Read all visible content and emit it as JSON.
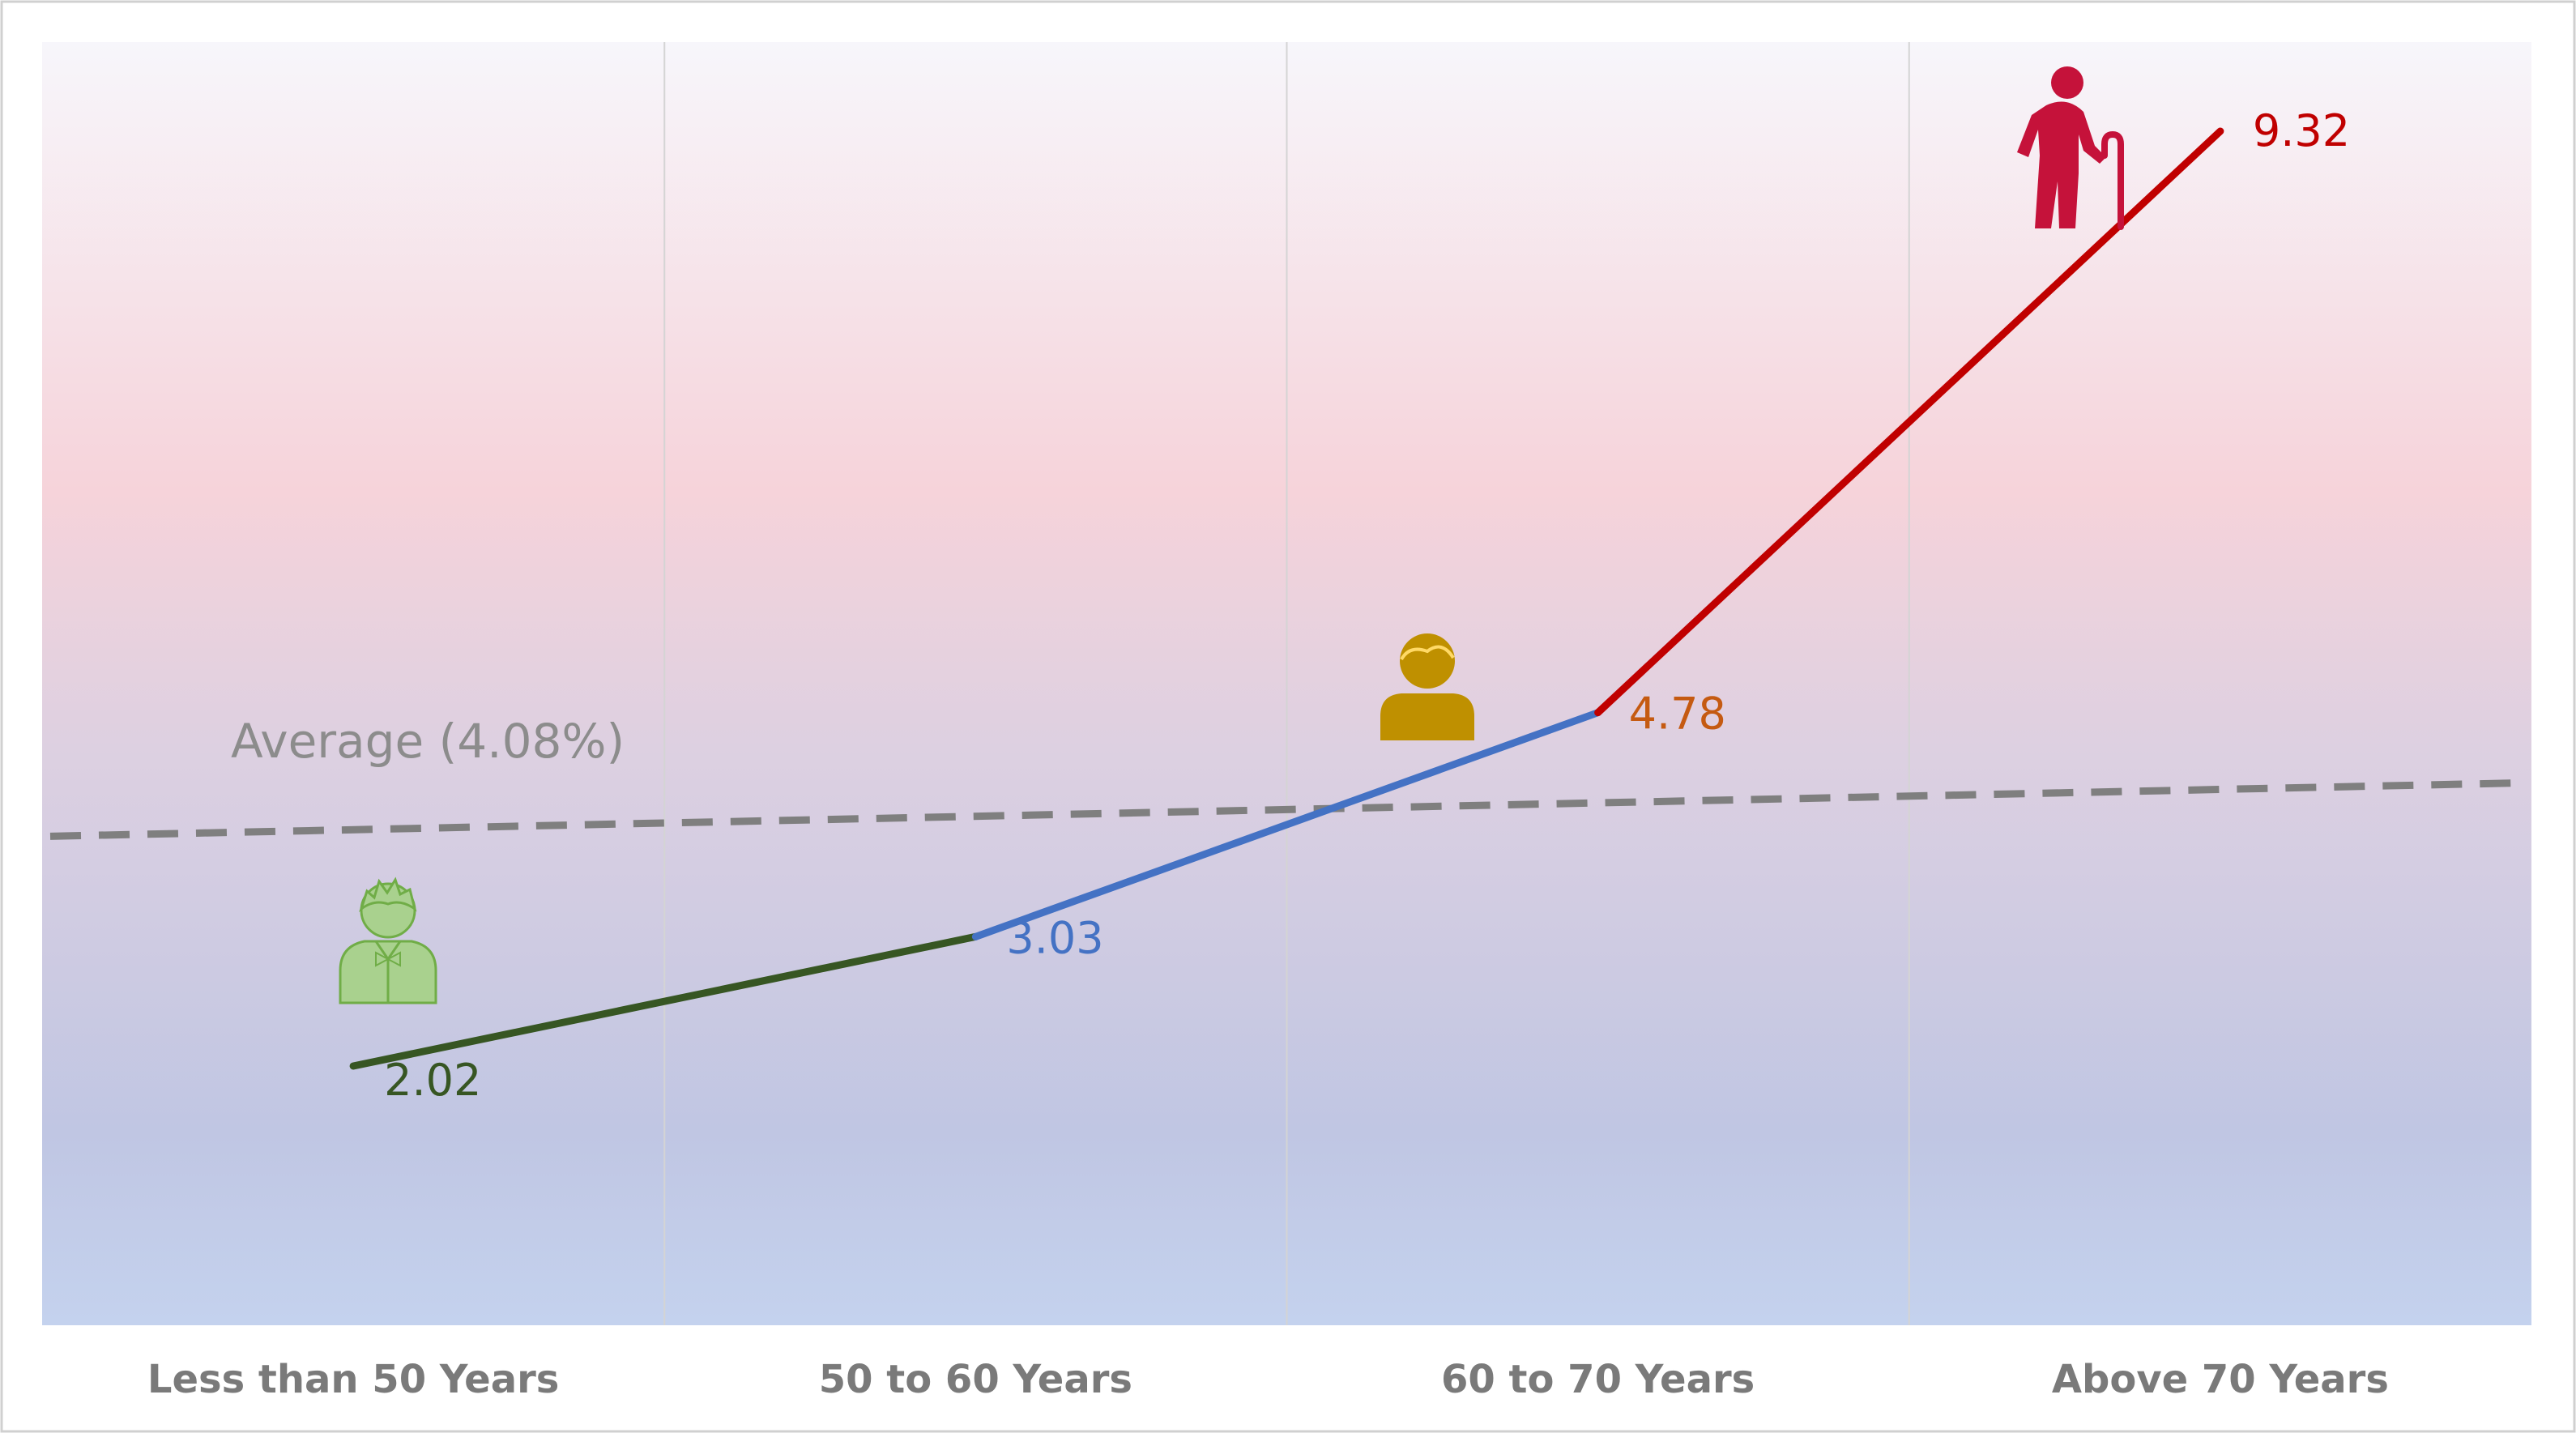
{
  "chart_data": {
    "type": "line",
    "categories": [
      "Less than 50 Years",
      "50 to 60 Years",
      "60 to 70 Years",
      "Above 70 Years"
    ],
    "values": [
      2.02,
      3.03,
      4.78,
      9.32
    ],
    "value_labels": [
      "2.02",
      "3.03",
      "4.78",
      "9.32"
    ],
    "segment_colors": [
      "#375623",
      "#4472c4",
      "#c00000"
    ],
    "label_colors": [
      "#375623",
      "#4472c4",
      "#c55a11",
      "#c00000"
    ],
    "icons": [
      "young-person-icon",
      "adult-person-icon",
      "elderly-walking-person-icon"
    ],
    "icon_colors": [
      "#a9d18e",
      "#bf9000",
      "#c5123a"
    ],
    "average": {
      "value": 4.08,
      "label": "Average (4.08%)",
      "color": "#7f7f7f",
      "style": "dashed"
    },
    "ylim": [
      0,
      10
    ],
    "grid": "vertical",
    "background": "gradient",
    "title": "",
    "xlabel": "",
    "ylabel": ""
  }
}
